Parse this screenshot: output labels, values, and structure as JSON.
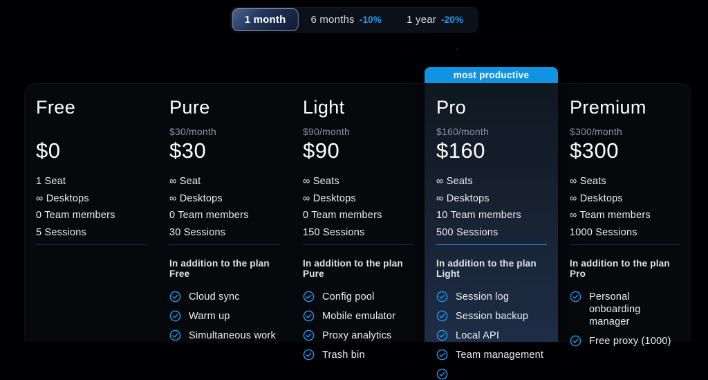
{
  "period_selector": {
    "options": [
      {
        "label": "1 month",
        "discount": "",
        "selected": true
      },
      {
        "label": "6 months",
        "discount": "-10%",
        "selected": false
      },
      {
        "label": "1 year",
        "discount": "-20%",
        "selected": false
      }
    ]
  },
  "plans": [
    {
      "name": "Free",
      "monthly_label": "",
      "price": "$0",
      "features": [
        "1 Seat",
        "∞ Desktops",
        "0 Team members",
        "5 Sessions"
      ],
      "addition_title": "",
      "addons": [],
      "highlighted": false,
      "badge": ""
    },
    {
      "name": "Pure",
      "monthly_label": "$30/month",
      "price": "$30",
      "features": [
        "∞ Seat",
        "∞ Desktops",
        "0 Team members",
        "30 Sessions"
      ],
      "addition_title": "In addition to the plan Free",
      "addons": [
        "Cloud sync",
        "Warm up",
        "Simultaneous work"
      ],
      "highlighted": false,
      "badge": ""
    },
    {
      "name": "Light",
      "monthly_label": "$90/month",
      "price": "$90",
      "features": [
        "∞ Seats",
        "∞ Desktops",
        "0 Team members",
        "150 Sessions"
      ],
      "addition_title": "In addition to the plan Pure",
      "addons": [
        "Config pool",
        "Mobile emulator",
        "Proxy analytics",
        "Trash bin"
      ],
      "highlighted": false,
      "badge": ""
    },
    {
      "name": "Pro",
      "monthly_label": "$160/month",
      "price": "$160",
      "features": [
        "∞ Seats",
        "∞ Desktops",
        "10 Team members",
        "500 Sessions"
      ],
      "addition_title": "In addition to the plan Light",
      "addons": [
        "Session log",
        "Session backup",
        "Local API",
        "Team management",
        ""
      ],
      "highlighted": true,
      "badge": "most productive"
    },
    {
      "name": "Premium",
      "monthly_label": "$300/month",
      "price": "$300",
      "features": [
        "∞ Seats",
        "∞ Desktops",
        "∞ Team members",
        "1000 Sessions"
      ],
      "addition_title": "In addition to the plan Pro",
      "addons": [
        "Personal onboarding manager",
        "Free proxy (1000)"
      ],
      "highlighted": false,
      "badge": ""
    }
  ],
  "icons": {
    "addon_icon": "check-circle-icon"
  },
  "colors": {
    "accent_blue": "#1e96e8",
    "badge_blue": "#1093e2",
    "discount_blue": "#1f9cf0",
    "card_bg": "#07080c",
    "pro_gradient_top": "#0f1620",
    "pro_gradient_bottom": "#1e2d46",
    "page_bg": "#000004",
    "muted_text": "#8d929b"
  }
}
